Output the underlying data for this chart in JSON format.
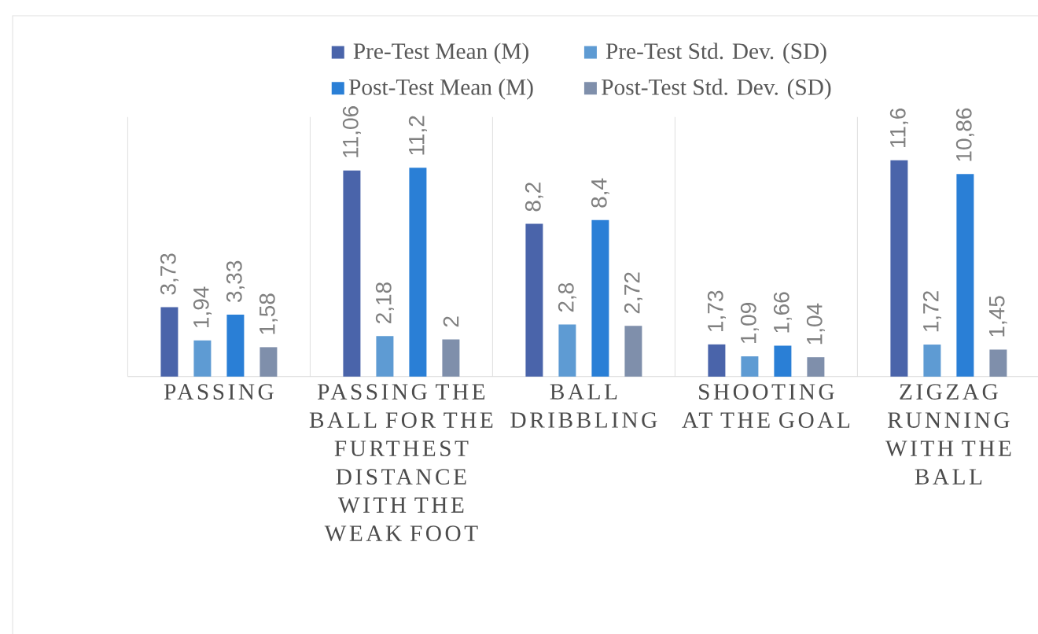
{
  "chart_data": {
    "type": "bar",
    "categories": [
      "PASSING",
      "PASSING THE BALL FOR THE FURTHEST DISTANCE WITH THE WEAK FOOT",
      "BALL DRIBBLING",
      "SHOOTING AT THE GOAL",
      "ZIGZAG RUNNING WITH THE BALL"
    ],
    "series": [
      {
        "name": "Pre-Test Mean (M)",
        "color": "#4a64aa",
        "values": [
          3.73,
          11.06,
          8.2,
          1.73,
          11.6
        ],
        "value_labels": [
          "3,73",
          "11,06",
          "8,2",
          "1,73",
          "11,6"
        ]
      },
      {
        "name": "Pre-Test Std. Dev. (SD)",
        "color": "#5e9bd3",
        "values": [
          1.94,
          2.18,
          2.8,
          1.09,
          1.72
        ],
        "value_labels": [
          "1,94",
          "2,18",
          "2,8",
          "1,09",
          "1,72"
        ]
      },
      {
        "name": "Post-Test Mean (M)",
        "color": "#2a7fd6",
        "values": [
          3.33,
          11.2,
          8.4,
          1.66,
          10.86
        ],
        "value_labels": [
          "3,33",
          "11,2",
          "8,4",
          "1,66",
          "10,86"
        ]
      },
      {
        "name": "Post-Test Std. Dev. (SD)",
        "color": "#7f8fab",
        "values": [
          1.58,
          2,
          2.72,
          1.04,
          1.45
        ],
        "value_labels": [
          "1,58",
          "2",
          "2,72",
          "1,04",
          "1,45"
        ]
      }
    ],
    "legend": "top",
    "grid": "x"
  }
}
